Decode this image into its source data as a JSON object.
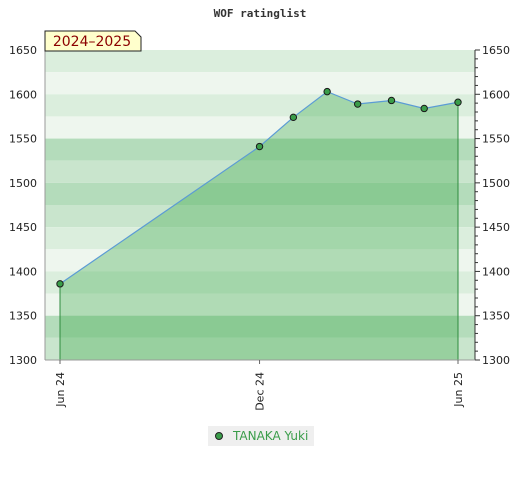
{
  "chart_data": {
    "type": "area",
    "title": "WOF ratinglist",
    "season_label": "2024–2025",
    "x_tick_labels": [
      "Jun 24",
      "Dec 24",
      "Jun 25"
    ],
    "ylim": [
      1300,
      1650
    ],
    "y_ticks": [
      1300,
      1350,
      1400,
      1450,
      1500,
      1550,
      1600,
      1650
    ],
    "grid": true,
    "legend_position": "bottom-center",
    "series": [
      {
        "name": "TANAKA Yuki",
        "points": [
          {
            "x": "2024-06-01",
            "y": 1386
          },
          {
            "x": "2024-12-01",
            "y": 1541
          },
          {
            "x": "2025-01-01",
            "y": 1574
          },
          {
            "x": "2025-02-01",
            "y": 1603
          },
          {
            "x": "2025-03-01",
            "y": 1589
          },
          {
            "x": "2025-04-01",
            "y": 1593
          },
          {
            "x": "2025-05-01",
            "y": 1584
          },
          {
            "x": "2025-06-01",
            "y": 1591
          }
        ]
      }
    ],
    "colors": {
      "line": "#5b9bd5",
      "marker_fill": "#3a9d4a",
      "area_fill": "#3da84a",
      "drop_line": "#2e8b3e",
      "legend_text": "#3a9d4a",
      "band_colors": [
        "#eef6ee",
        "#dbeedd",
        "#c9e5cd",
        "#b4dcbb"
      ],
      "season_box_fill": "#ffffcc"
    }
  }
}
